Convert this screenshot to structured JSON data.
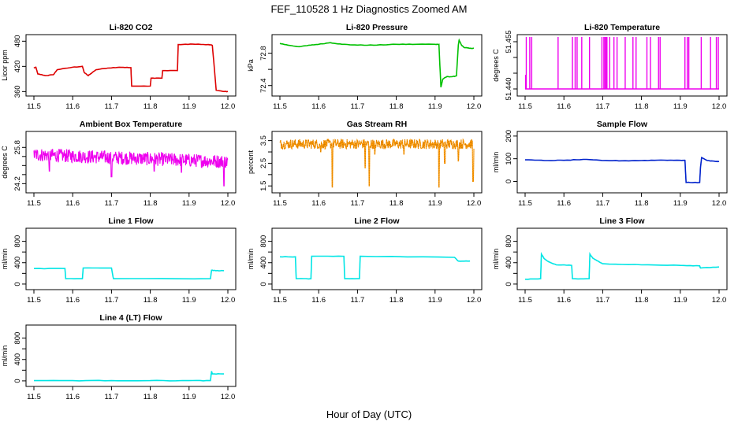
{
  "figure": {
    "title": "FEF_110528 1 Hz Diagnostics Zoomed AM",
    "xlabel": "Hour of Day (UTC)"
  },
  "chart_data": [
    {
      "type": "line",
      "title": "Li-820 CO2",
      "ylabel": "Licor ppm",
      "color": "#dd0000",
      "xlim": [
        11.5,
        12.0
      ],
      "xticks": [
        "11.5",
        "11.6",
        "11.7",
        "11.8",
        "11.9",
        "12.0"
      ],
      "ylim": [
        355,
        490
      ],
      "yticks": [
        360,
        420,
        480
      ],
      "ytick_labels": [
        "360",
        "420",
        "480"
      ],
      "series": [
        {
          "x": [
            11.5,
            11.505,
            11.51,
            11.53,
            11.55,
            11.56,
            11.6,
            11.625,
            11.63,
            11.64,
            11.65,
            11.66,
            11.69,
            11.72,
            11.75,
            11.752,
            11.8,
            11.802,
            11.83,
            11.832,
            11.87,
            11.872,
            11.91,
            11.95,
            11.96,
            11.97,
            11.99,
            12.0
          ],
          "y": [
            416,
            418,
            402,
            398,
            400,
            412,
            418,
            420,
            405,
            398,
            405,
            412,
            416,
            418,
            417,
            373,
            373,
            392,
            392,
            410,
            410,
            472,
            473,
            472,
            470,
            363,
            360,
            360
          ]
        }
      ]
    },
    {
      "type": "line",
      "title": "Li-820 Pressure",
      "ylabel": "kPa",
      "color": "#00c000",
      "xlim": [
        11.5,
        12.0
      ],
      "xticks": [
        "11.5",
        "11.6",
        "11.7",
        "11.8",
        "11.9",
        "12.0"
      ],
      "ylim": [
        72.3,
        73.0
      ],
      "yticks": [
        72.4,
        72.6,
        72.8
      ],
      "ytick_labels": [
        "72.4",
        "",
        "72.8"
      ],
      "series": [
        {
          "x": [
            11.5,
            11.52,
            11.55,
            11.58,
            11.6,
            11.63,
            11.66,
            11.7,
            11.75,
            11.8,
            11.85,
            11.9,
            11.91,
            11.915,
            11.92,
            11.93,
            11.945,
            11.955,
            11.96,
            11.962,
            11.968,
            11.975,
            11.99,
            12.0
          ],
          "y": [
            72.92,
            72.9,
            72.88,
            72.9,
            72.91,
            72.93,
            72.91,
            72.9,
            72.9,
            72.91,
            72.91,
            72.91,
            72.91,
            72.38,
            72.48,
            72.51,
            72.51,
            72.52,
            72.9,
            72.96,
            72.9,
            72.87,
            72.86,
            72.86
          ]
        }
      ]
    },
    {
      "type": "line",
      "title": "Li-820 Temperature",
      "ylabel": "degrees C",
      "color": "#ee00ee",
      "xlim": [
        11.5,
        12.0
      ],
      "xticks": [
        "11.5",
        "11.6",
        "11.7",
        "11.8",
        "11.9",
        "12.0"
      ],
      "ylim": [
        51.4385,
        51.4565
      ],
      "yticks": [
        51.44,
        51.445,
        51.45,
        51.455
      ],
      "ytick_labels": [
        "51.440",
        "",
        "",
        "51.455"
      ],
      "spikes": {
        "low": 51.44,
        "high": 51.4565,
        "x": [
          11.503,
          11.512,
          11.517,
          11.585,
          11.622,
          11.629,
          11.634,
          11.646,
          11.666,
          11.698,
          11.703,
          11.706,
          11.709,
          11.711,
          11.718,
          11.729,
          11.737,
          11.758,
          11.778,
          11.786,
          11.814,
          11.823,
          11.844,
          11.848,
          11.912,
          11.918,
          11.922,
          11.954,
          11.978,
          11.993,
          11.998
        ]
      }
    },
    {
      "type": "line",
      "title": "Ambient Box Temperature",
      "ylabel": "degrees C",
      "color": "#ee00ee",
      "xlim": [
        11.5,
        12.0
      ],
      "xticks": [
        "11.5",
        "11.6",
        "11.7",
        "11.8",
        "11.9",
        "12.0"
      ],
      "ylim": [
        23.9,
        26.4
      ],
      "yticks": [
        24.2,
        24.6,
        25.0,
        25.4,
        25.8
      ],
      "ytick_labels": [
        "24.2",
        "",
        "",
        "",
        "25.8"
      ],
      "noise": {
        "y0": 25.48,
        "y1": 25.17,
        "amp": 0.3,
        "outliers": [
          [
            11.54,
            24.75
          ],
          [
            11.7,
            24.5
          ],
          [
            11.81,
            24.75
          ],
          [
            11.88,
            24.7
          ],
          [
            11.99,
            24.1
          ]
        ]
      }
    },
    {
      "type": "scatter",
      "title": "Gas Stream RH",
      "ylabel": "percent",
      "color": "#ff9900",
      "xlim": [
        11.5,
        12.0
      ],
      "xticks": [
        "11.5",
        "11.6",
        "11.7",
        "11.8",
        "11.9",
        "12.0"
      ],
      "ylim": [
        1.3,
        3.8
      ],
      "yticks": [
        1.5,
        2.0,
        2.5,
        3.0,
        3.5
      ],
      "ytick_labels": [
        "1.5",
        "",
        "2.5",
        "",
        "3.5"
      ],
      "noise": {
        "y0": 3.35,
        "y1": 3.35,
        "amp": 0.22
      },
      "dips": [
        [
          11.605,
          3.0
        ],
        [
          11.635,
          1.45
        ],
        [
          11.72,
          2.3
        ],
        [
          11.73,
          1.5
        ],
        [
          11.745,
          2.9
        ],
        [
          11.82,
          2.9
        ],
        [
          11.91,
          1.45
        ],
        [
          11.925,
          2.5
        ],
        [
          11.96,
          2.6
        ],
        [
          11.998,
          1.7
        ]
      ]
    },
    {
      "type": "line",
      "title": "Sample Flow",
      "ylabel": "ml/min",
      "color": "#0022cc",
      "xlim": [
        11.5,
        12.0
      ],
      "xticks": [
        "11.5",
        "11.6",
        "11.7",
        "11.8",
        "11.9",
        "12.0"
      ],
      "ylim": [
        -40,
        210
      ],
      "yticks": [
        0,
        100,
        200
      ],
      "ytick_labels": [
        "0",
        "100",
        "200"
      ],
      "series": [
        {
          "x": [
            11.5,
            11.55,
            11.6,
            11.65,
            11.7,
            11.75,
            11.8,
            11.85,
            11.9,
            11.912,
            11.915,
            11.95,
            11.952,
            11.955,
            11.97,
            11.99,
            12.0
          ],
          "y": [
            95,
            92,
            93,
            97,
            92,
            91,
            92,
            94,
            93,
            93,
            -5,
            -5,
            60,
            105,
            92,
            88,
            88
          ]
        }
      ]
    },
    {
      "type": "line",
      "title": "Line 1 Flow",
      "ylabel": "ml/min",
      "color": "#00e5e5",
      "xlim": [
        11.5,
        12.0
      ],
      "xticks": [
        "11.5",
        "11.6",
        "11.7",
        "11.8",
        "11.9",
        "12.0"
      ],
      "ylim": [
        -60,
        1000
      ],
      "yticks": [
        0,
        200,
        400,
        600,
        800
      ],
      "ytick_labels": [
        "0",
        "",
        "400",
        "",
        "800"
      ],
      "series": [
        {
          "x": [
            11.5,
            11.58,
            11.582,
            11.625,
            11.627,
            11.7,
            11.705,
            11.955,
            11.958,
            11.97,
            11.99
          ],
          "y": [
            290,
            290,
            100,
            100,
            300,
            300,
            100,
            100,
            260,
            250,
            250
          ]
        }
      ]
    },
    {
      "type": "line",
      "title": "Line 2 Flow",
      "ylabel": "ml/min",
      "color": "#00e5e5",
      "xlim": [
        11.5,
        12.0
      ],
      "xticks": [
        "11.5",
        "11.6",
        "11.7",
        "11.8",
        "11.9",
        "12.0"
      ],
      "ylim": [
        -60,
        1000
      ],
      "yticks": [
        0,
        200,
        400,
        600,
        800
      ],
      "ytick_labels": [
        "0",
        "",
        "400",
        "",
        "800"
      ],
      "series": [
        {
          "x": [
            11.5,
            11.54,
            11.542,
            11.58,
            11.582,
            11.665,
            11.667,
            11.705,
            11.707,
            11.95,
            11.96,
            11.99
          ],
          "y": [
            510,
            510,
            100,
            100,
            520,
            520,
            100,
            100,
            520,
            500,
            430,
            430
          ]
        }
      ]
    },
    {
      "type": "line",
      "title": "Line 3 Flow",
      "ylabel": "ml/min",
      "color": "#00e5e5",
      "xlim": [
        11.5,
        12.0
      ],
      "xticks": [
        "11.5",
        "11.6",
        "11.7",
        "11.8",
        "11.9",
        "12.0"
      ],
      "ylim": [
        -60,
        1000
      ],
      "yticks": [
        0,
        200,
        400,
        600,
        800
      ],
      "ytick_labels": [
        "0",
        "",
        "400",
        "",
        "800"
      ],
      "series": [
        {
          "x": [
            11.5,
            11.54,
            11.542,
            11.55,
            11.56,
            11.58,
            11.62,
            11.622,
            11.665,
            11.667,
            11.675,
            11.69,
            11.7,
            11.8,
            11.9,
            11.95,
            11.952,
            12.0
          ],
          "y": [
            90,
            100,
            560,
            470,
            420,
            360,
            350,
            100,
            100,
            560,
            480,
            420,
            380,
            360,
            350,
            340,
            300,
            320
          ]
        }
      ]
    },
    {
      "type": "line",
      "title": "Line 4 (LT) Flow",
      "ylabel": "ml/min",
      "color": "#00e5e5",
      "xlim": [
        11.5,
        12.0
      ],
      "xticks": [
        "11.5",
        "11.6",
        "11.7",
        "11.8",
        "11.9",
        "12.0"
      ],
      "ylim": [
        -60,
        1000
      ],
      "yticks": [
        0,
        200,
        400,
        600,
        800
      ],
      "ytick_labels": [
        "0",
        "",
        "400",
        "",
        "800"
      ],
      "series": [
        {
          "x": [
            11.5,
            11.6,
            11.7,
            11.8,
            11.9,
            11.955,
            11.958,
            11.96,
            11.99
          ],
          "y": [
            5,
            5,
            5,
            5,
            5,
            5,
            180,
            130,
            130
          ]
        }
      ]
    }
  ]
}
